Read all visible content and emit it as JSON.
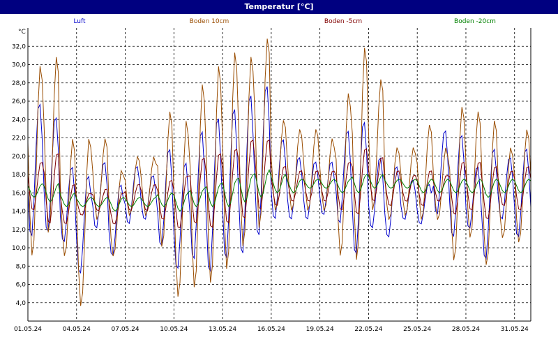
{
  "window": {
    "title": "Temperatur [°C]"
  },
  "chart_data": {
    "type": "line",
    "title": "Temperatur [°C]",
    "ylabel": "°C",
    "xlabel": "",
    "ylim": [
      2.0,
      34.0
    ],
    "xlim": [
      "01.05.24 00:00",
      "01.06.24 00:00"
    ],
    "yticks": [
      "4,0",
      "6,0",
      "8,0",
      "10,0",
      "12,0",
      "14,0",
      "16,0",
      "18,0",
      "20,0",
      "22,0",
      "24,0",
      "26,0",
      "28,0",
      "30,0",
      "32,0"
    ],
    "xticks": [
      "01.05.24",
      "04.05.24",
      "07.05.24",
      "10.05.24",
      "13.05.24",
      "16.05.24",
      "19.05.24",
      "22.05.24",
      "25.05.24",
      "28.05.24",
      "31.05.24"
    ],
    "grid": true,
    "legend_position": "top",
    "days": [
      "01.05.24",
      "02.05.24",
      "03.05.24",
      "04.05.24",
      "05.05.24",
      "06.05.24",
      "07.05.24",
      "08.05.24",
      "09.05.24",
      "10.05.24",
      "11.05.24",
      "12.05.24",
      "13.05.24",
      "14.05.24",
      "15.05.24",
      "16.05.24",
      "17.05.24",
      "18.05.24",
      "19.05.24",
      "20.05.24",
      "21.05.24",
      "22.05.24",
      "23.05.24",
      "24.05.24",
      "25.05.24",
      "26.05.24",
      "27.05.24",
      "28.05.24",
      "29.05.24",
      "30.05.24",
      "31.05.24"
    ],
    "series": [
      {
        "name": "Luft",
        "color": "#0000cc",
        "daily_min": [
          11.0,
          11.5,
          10.5,
          7.0,
          12.0,
          9.0,
          12.5,
          13.0,
          10.0,
          7.5,
          8.5,
          7.0,
          8.5,
          9.0,
          11.0,
          13.0,
          13.0,
          13.0,
          13.5,
          12.5,
          9.0,
          12.0,
          11.0,
          13.0,
          12.5,
          13.5,
          11.0,
          12.0,
          8.5,
          13.0,
          11.0
        ],
        "daily_max": [
          26.0,
          24.5,
          19.0,
          18.0,
          19.5,
          17.0,
          19.0,
          18.0,
          21.0,
          19.5,
          23.0,
          24.5,
          25.5,
          27.0,
          28.0,
          22.0,
          20.0,
          19.5,
          19.5,
          23.0,
          24.0,
          20.0,
          19.0,
          17.5,
          17.0,
          23.0,
          22.5,
          19.0,
          21.0,
          20.0,
          21.0
        ]
      },
      {
        "name": "Boden 10cm",
        "color": "#994c00",
        "daily_min": [
          9.0,
          11.5,
          9.0,
          3.5,
          13.0,
          9.0,
          13.5,
          13.5,
          10.0,
          4.5,
          5.5,
          6.0,
          7.5,
          10.0,
          12.0,
          14.0,
          14.0,
          14.0,
          14.0,
          9.0,
          8.5,
          14.0,
          13.0,
          13.5,
          13.0,
          13.0,
          8.5,
          11.0,
          8.0,
          11.0,
          10.5
        ],
        "daily_max": [
          30.0,
          31.0,
          22.0,
          22.0,
          22.0,
          18.5,
          20.0,
          20.0,
          25.0,
          24.0,
          28.0,
          30.0,
          31.5,
          31.0,
          33.0,
          24.0,
          23.0,
          23.0,
          22.0,
          27.0,
          32.0,
          28.5,
          21.0,
          21.0,
          23.5,
          21.0,
          25.5,
          25.0,
          24.0,
          21.0,
          23.0
        ]
      },
      {
        "name": "Boden -5cm",
        "color": "#800000",
        "daily_min": [
          14.0,
          12.5,
          12.5,
          13.5,
          14.0,
          12.5,
          14.0,
          14.0,
          13.0,
          12.0,
          12.5,
          12.0,
          12.5,
          13.0,
          14.0,
          14.5,
          15.0,
          15.0,
          15.0,
          14.0,
          13.5,
          15.0,
          14.5,
          15.0,
          14.5,
          15.0,
          13.5,
          14.0,
          13.0,
          14.5,
          14.0
        ],
        "daily_max": [
          19.5,
          20.5,
          17.0,
          16.0,
          16.5,
          16.0,
          17.0,
          17.0,
          17.5,
          18.0,
          20.0,
          20.5,
          21.0,
          22.0,
          22.0,
          19.0,
          18.5,
          18.5,
          18.5,
          19.5,
          21.0,
          20.0,
          18.5,
          18.0,
          18.5,
          18.0,
          19.5,
          19.5,
          19.0,
          18.5,
          19.0
        ]
      },
      {
        "name": "Boden -20cm",
        "color": "#008000",
        "daily_min": [
          15.5,
          15.0,
          14.5,
          14.5,
          14.5,
          14.0,
          14.5,
          14.5,
          14.5,
          14.0,
          14.5,
          14.5,
          14.5,
          15.0,
          15.5,
          16.0,
          16.0,
          16.5,
          16.5,
          16.0,
          16.0,
          16.5,
          16.5,
          16.5,
          16.0,
          16.0,
          16.0,
          16.0,
          15.5,
          16.0,
          16.0
        ],
        "daily_max": [
          17.0,
          17.0,
          16.0,
          15.5,
          15.5,
          15.5,
          15.5,
          15.5,
          16.0,
          16.0,
          16.5,
          17.0,
          17.5,
          18.0,
          18.5,
          18.0,
          17.5,
          17.5,
          17.5,
          17.5,
          18.0,
          18.0,
          17.5,
          17.5,
          17.5,
          17.5,
          17.5,
          17.5,
          17.5,
          17.5,
          17.5
        ]
      }
    ]
  }
}
